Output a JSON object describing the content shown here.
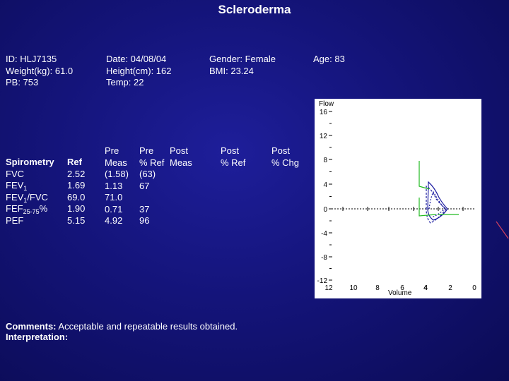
{
  "title": "Scleroderma",
  "patient": {
    "id": "ID: HLJ7135",
    "weight": "Weight(kg): 61.0",
    "pb": "PB: 753",
    "date": "Date: 04/08/04",
    "height": "Height(cm): 162",
    "temp": "Temp:  22",
    "gender": "Gender: Female",
    "bmi": "BMI: 23.24",
    "age": "Age:  83"
  },
  "table": {
    "header_label": "Spirometry",
    "ref_header": "Ref",
    "pre_meas_header": [
      "Pre",
      "Meas"
    ],
    "pre_ref_header": [
      "Pre",
      "% Ref"
    ],
    "post_meas_header": [
      "Post",
      "Meas"
    ],
    "post_ref_header": [
      "Post",
      "% Ref"
    ],
    "post_chg_header": [
      "Post",
      "% Chg"
    ],
    "rows": [
      {
        "label_main": "FVC",
        "label_sub": "",
        "label_suffix": "",
        "ref": "2.52",
        "pre_meas": "(1.58)",
        "pre_ref": "(63)"
      },
      {
        "label_main": "FEV",
        "label_sub": "1",
        "label_suffix": "",
        "ref": "1.69",
        "pre_meas": "1.13",
        "pre_ref": "67"
      },
      {
        "label_main": "FEV",
        "label_sub": "1",
        "label_suffix": "/FVC",
        "ref": "69.0",
        "pre_meas": "71.0",
        "pre_ref": ""
      },
      {
        "label_main": "FEF",
        "label_sub": "25-75",
        "label_suffix": "%",
        "ref": "1.90",
        "pre_meas": "0.71",
        "pre_ref": "37"
      },
      {
        "label_main": "PEF",
        "label_sub": "",
        "label_suffix": "",
        "ref": "5.15",
        "pre_meas": "4.92",
        "pre_ref": "96"
      }
    ]
  },
  "plot": {
    "y_axis_label": "Flow",
    "x_axis_label": "Volume",
    "y_ticks": [
      "16",
      "12",
      "8",
      "4",
      "0",
      "-4",
      "-8",
      "-12"
    ],
    "x_ticks": [
      "12",
      "10",
      "8",
      "6",
      "4",
      "2",
      "0"
    ],
    "loop_color": "#1a1aa0",
    "predicted_color": "#22bb22"
  },
  "comments": {
    "comments_label": "Comments:",
    "comments_text": " Acceptable and repeatable results obtained.",
    "interpretation_label": "Interpretation:"
  }
}
